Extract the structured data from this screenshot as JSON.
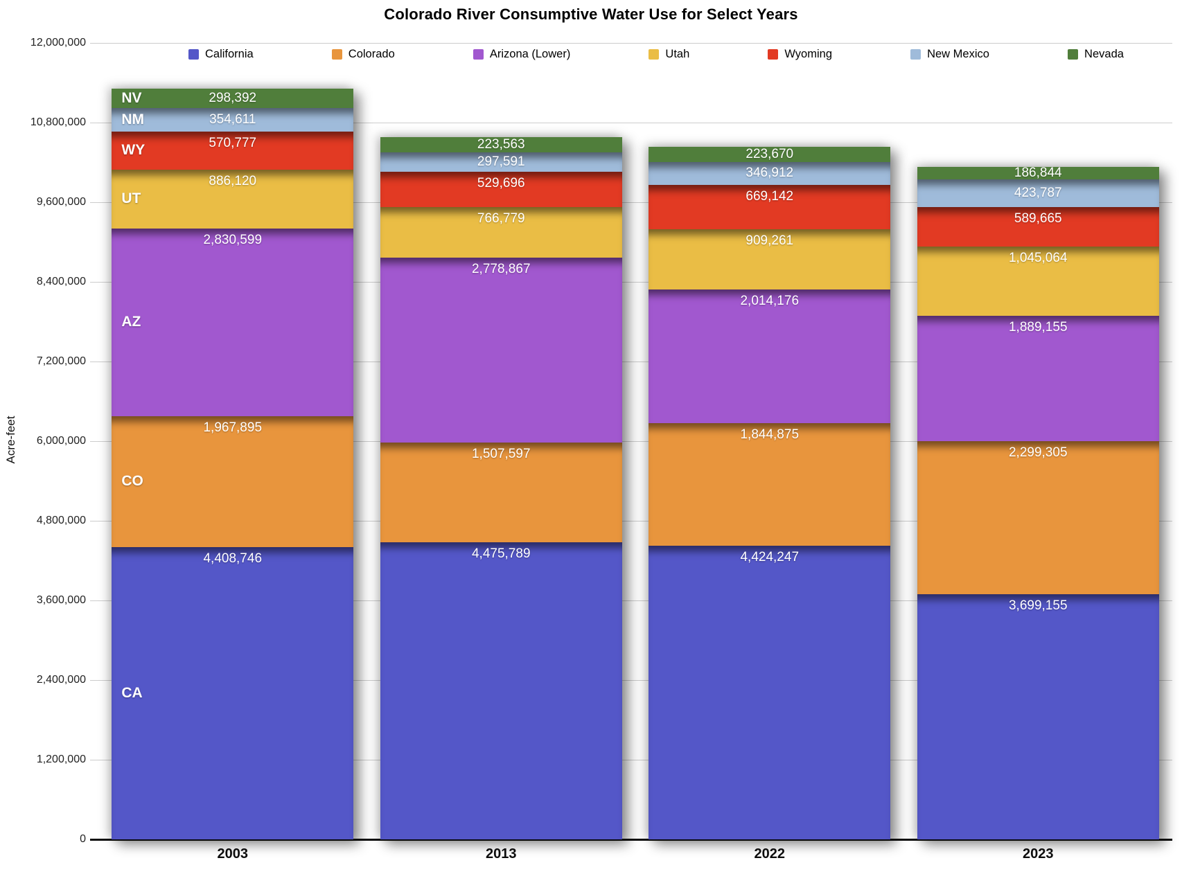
{
  "chart_data": {
    "type": "bar",
    "stacked": true,
    "title": "Colorado River Consumptive Water Use for Select Years",
    "ylabel": "Acre-feet",
    "xlabel": "",
    "categories": [
      "2003",
      "2013",
      "2022",
      "2023"
    ],
    "series": [
      {
        "name": "California",
        "abbr": "CA",
        "color": "#5457c8",
        "values": [
          4408746,
          4475789,
          4424247,
          3699155
        ]
      },
      {
        "name": "Colorado",
        "abbr": "CO",
        "color": "#e8953d",
        "values": [
          1967895,
          1507597,
          1844875,
          2299305
        ]
      },
      {
        "name": "Arizona (Lower)",
        "abbr": "AZ",
        "color": "#a158cf",
        "values": [
          2830599,
          2778867,
          2014176,
          1889155
        ]
      },
      {
        "name": "Utah",
        "abbr": "UT",
        "color": "#eabd45",
        "values": [
          886120,
          766779,
          909261,
          1045064
        ]
      },
      {
        "name": "Wyoming",
        "abbr": "WY",
        "color": "#e23a23",
        "values": [
          570777,
          529696,
          669142,
          589665
        ]
      },
      {
        "name": "New Mexico",
        "abbr": "NM",
        "color": "#9fbbda",
        "values": [
          354611,
          297591,
          346912,
          423787
        ]
      },
      {
        "name": "Nevada",
        "abbr": "NV",
        "color": "#507e3b",
        "values": [
          298392,
          223563,
          223670,
          186844
        ]
      }
    ],
    "ylim": [
      0,
      12000000
    ],
    "ytick_step": 1200000,
    "ytick_labels": [
      "0",
      "1,200,000",
      "2,400,000",
      "3,600,000",
      "4,800,000",
      "6,000,000",
      "7,200,000",
      "8,400,000",
      "9,600,000",
      "10,800,000",
      "12,000,000"
    ],
    "grid": true,
    "legend_position": "top",
    "gridline_color": "#cccccc",
    "axis_line_color": "#0d0d0d",
    "value_label_color": "#ffffff",
    "state_abbr_labels_on_first_bar": true
  }
}
